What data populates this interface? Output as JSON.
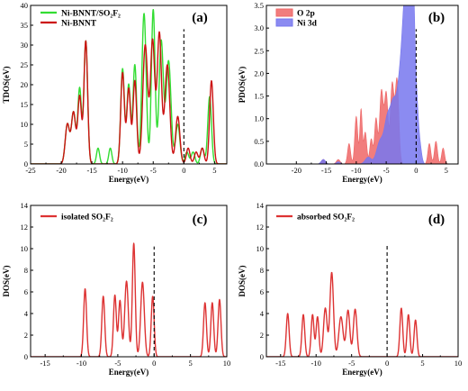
{
  "chart_data": [
    {
      "type": "line",
      "panel_label": "(a)",
      "xlabel": "Energy(eV)",
      "ylabel": "TDOS(eV)",
      "xlim": [
        -25,
        7
      ],
      "ylim": [
        0,
        40
      ],
      "xticks": [
        -25,
        -20,
        -15,
        -10,
        -5,
        0,
        5
      ],
      "yticks": [
        0,
        5,
        10,
        15,
        20,
        25,
        30,
        35,
        40
      ],
      "fermi_x": 0,
      "legend": [
        "Ni-BNNT/SO₂F₂",
        "Ni-BNNT"
      ],
      "legend_position": "top-left",
      "series": [
        {
          "name": "Ni-BNNT/SO₂F₂",
          "color": "#33dd33",
          "baseline": 0,
          "peaks": [
            [
              -19.0,
              10,
              0.35
            ],
            [
              -18.0,
              13,
              0.35
            ],
            [
              -17.0,
              19,
              0.3
            ],
            [
              -16.0,
              31,
              0.3
            ],
            [
              -14.0,
              4,
              0.25
            ],
            [
              -12.0,
              4,
              0.25
            ],
            [
              -10.0,
              24,
              0.3
            ],
            [
              -9.0,
              20,
              0.3
            ],
            [
              -8.0,
              25,
              0.3
            ],
            [
              -6.5,
              38,
              0.35
            ],
            [
              -5.0,
              39,
              0.3
            ],
            [
              -3.7,
              31,
              0.35
            ],
            [
              -2.5,
              26,
              0.4
            ],
            [
              -1.0,
              10,
              0.35
            ],
            [
              0.5,
              3,
              0.3
            ],
            [
              1.5,
              3,
              0.3
            ],
            [
              3.0,
              4,
              0.3
            ],
            [
              4.2,
              17,
              0.3
            ]
          ]
        },
        {
          "name": "Ni-BNNT",
          "color": "#cc1111",
          "baseline": 0,
          "peaks": [
            [
              -19.0,
              10,
              0.35
            ],
            [
              -18.0,
              13,
              0.35
            ],
            [
              -17.0,
              17,
              0.3
            ],
            [
              -16.0,
              31,
              0.3
            ],
            [
              -10.0,
              23,
              0.3
            ],
            [
              -9.0,
              19,
              0.3
            ],
            [
              -8.0,
              21,
              0.3
            ],
            [
              -6.3,
              30,
              0.4
            ],
            [
              -5.1,
              31,
              0.35
            ],
            [
              -4.0,
              33,
              0.35
            ],
            [
              -2.7,
              25,
              0.4
            ],
            [
              -1.0,
              12,
              0.35
            ],
            [
              0.7,
              4,
              0.3
            ],
            [
              2.0,
              3,
              0.3
            ],
            [
              3.0,
              4,
              0.3
            ],
            [
              4.5,
              21,
              0.3
            ]
          ]
        }
      ]
    },
    {
      "type": "area",
      "panel_label": "(b)",
      "xlabel": "Energy(eV)",
      "ylabel": "PDOS(eV)",
      "xlim": [
        -25,
        7
      ],
      "ylim": [
        0,
        3.5
      ],
      "xticks": [
        -20,
        -15,
        -10,
        -5,
        0,
        5
      ],
      "yticks": [
        0.0,
        0.5,
        1.0,
        1.5,
        2.0,
        2.5,
        3.0,
        3.5
      ],
      "fermi_x": 0,
      "legend": [
        "O 2p",
        "Ni 3d"
      ],
      "legend_position": "top-left",
      "series": [
        {
          "name": "O 2p",
          "color": "#ee6666",
          "baseline": 0,
          "peaks": [
            [
              -15.5,
              0.1,
              0.3
            ],
            [
              -13.0,
              0.1,
              0.3
            ],
            [
              -11.2,
              0.45,
              0.25
            ],
            [
              -10.0,
              1.05,
              0.25
            ],
            [
              -9.2,
              1.2,
              0.2
            ],
            [
              -8.5,
              0.7,
              0.25
            ],
            [
              -7.5,
              0.55,
              0.25
            ],
            [
              -6.7,
              1.0,
              0.25
            ],
            [
              -5.8,
              1.6,
              0.3
            ],
            [
              -5.0,
              1.55,
              0.3
            ],
            [
              -4.0,
              1.75,
              0.3
            ],
            [
              -3.2,
              1.85,
              0.3
            ],
            [
              2.2,
              0.45,
              0.25
            ],
            [
              3.3,
              0.5,
              0.25
            ],
            [
              4.5,
              0.35,
              0.25
            ]
          ]
        },
        {
          "name": "Ni 3d",
          "color": "#7777ee",
          "baseline": 0,
          "peaks": [
            [
              -15.5,
              0.1,
              0.35
            ],
            [
              -13.0,
              0.05,
              0.3
            ],
            [
              -8.0,
              0.15,
              0.5
            ],
            [
              -6.0,
              0.5,
              0.6
            ],
            [
              -4.8,
              0.9,
              0.5
            ],
            [
              -3.8,
              1.2,
              0.5
            ],
            [
              -2.7,
              1.7,
              0.5
            ],
            [
              -2.0,
              2.0,
              0.4
            ],
            [
              -1.5,
              2.3,
              0.4
            ],
            [
              -1.0,
              2.6,
              0.3
            ],
            [
              -0.5,
              3.2,
              0.25
            ],
            [
              0.0,
              1.5,
              0.3
            ],
            [
              0.6,
              0.4,
              0.3
            ]
          ]
        }
      ]
    },
    {
      "type": "line",
      "panel_label": "(c)",
      "xlabel": "Energy(eV)",
      "ylabel": "DOS(eV)",
      "xlim": [
        -17,
        10
      ],
      "ylim": [
        0,
        14
      ],
      "xticks": [
        -15,
        -10,
        -5,
        0,
        5,
        10
      ],
      "yticks": [
        0,
        2,
        4,
        6,
        8,
        10,
        12,
        14
      ],
      "fermi_x": 0,
      "fermi_top": 10.2,
      "legend": [
        "isolated SO₂F₂"
      ],
      "legend_position": "top-left",
      "series": [
        {
          "name": "isolated SO₂F₂",
          "color": "#dd3333",
          "baseline": 0,
          "peaks": [
            [
              -9.5,
              6.3,
              0.2
            ],
            [
              -7.0,
              5.6,
              0.2
            ],
            [
              -5.4,
              5.7,
              0.2
            ],
            [
              -4.7,
              5.2,
              0.2
            ],
            [
              -3.8,
              7.0,
              0.25
            ],
            [
              -2.8,
              10.5,
              0.2
            ],
            [
              -1.6,
              6.9,
              0.25
            ],
            [
              -0.2,
              5.6,
              0.2
            ],
            [
              7.0,
              5.0,
              0.2
            ],
            [
              8.0,
              5.0,
              0.2
            ],
            [
              9.0,
              5.3,
              0.2
            ]
          ]
        }
      ]
    },
    {
      "type": "line",
      "panel_label": "(d)",
      "xlabel": "Energy(eV)",
      "ylabel": "DOS(eV)",
      "xlim": [
        -17,
        10
      ],
      "ylim": [
        0,
        14
      ],
      "xticks": [
        -15,
        -10,
        -5,
        0,
        5,
        10
      ],
      "yticks": [
        0,
        2,
        4,
        6,
        8,
        10,
        12,
        14
      ],
      "fermi_x": 0,
      "fermi_top": 10.4,
      "legend": [
        "absorbed SO₂F₂"
      ],
      "legend_position": "top-left",
      "series": [
        {
          "name": "absorbed SO₂F₂",
          "color": "#dd3333",
          "baseline": 0,
          "peaks": [
            [
              -14.0,
              4.0,
              0.2
            ],
            [
              -11.8,
              3.9,
              0.2
            ],
            [
              -10.5,
              3.9,
              0.2
            ],
            [
              -9.8,
              3.7,
              0.2
            ],
            [
              -8.7,
              4.5,
              0.25
            ],
            [
              -7.8,
              7.8,
              0.25
            ],
            [
              -6.5,
              3.7,
              0.3
            ],
            [
              -5.5,
              4.3,
              0.25
            ],
            [
              -4.5,
              4.4,
              0.25
            ],
            [
              2.0,
              4.5,
              0.2
            ],
            [
              3.0,
              3.9,
              0.2
            ],
            [
              4.0,
              3.4,
              0.2
            ]
          ]
        }
      ]
    }
  ]
}
